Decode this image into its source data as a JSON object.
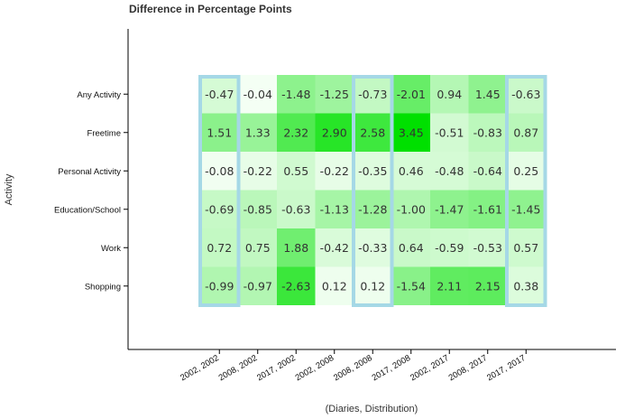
{
  "chart_data": {
    "type": "heatmap",
    "title": "Difference in Percentage Points",
    "xlabel": "(Diaries, Distribution)",
    "ylabel": "Activity",
    "categories_x": [
      "2002, 2002",
      "2008, 2002",
      "2017, 2002",
      "2002, 2008",
      "2008, 2008",
      "2017, 2008",
      "2002, 2017",
      "2008, 2017",
      "2017, 2017"
    ],
    "categories_y": [
      "Any Activity",
      "Freetime",
      "Personal Activity",
      "Education/School",
      "Work",
      "Shopping"
    ],
    "values": [
      [
        -0.47,
        -0.04,
        -1.48,
        -1.25,
        -0.73,
        -2.01,
        0.94,
        1.45,
        -0.63
      ],
      [
        1.51,
        1.33,
        2.32,
        2.9,
        2.58,
        3.45,
        -0.51,
        -0.83,
        0.87
      ],
      [
        -0.08,
        -0.22,
        0.55,
        -0.22,
        -0.35,
        0.46,
        -0.48,
        -0.64,
        0.25
      ],
      [
        -0.69,
        -0.85,
        -0.63,
        -1.13,
        -1.28,
        -1.0,
        -1.47,
        -1.61,
        -1.45
      ],
      [
        0.72,
        0.75,
        1.88,
        -0.42,
        -0.33,
        0.64,
        -0.59,
        -0.53,
        0.57
      ],
      [
        -0.99,
        -0.97,
        -2.63,
        0.12,
        0.12,
        -1.54,
        2.11,
        2.15,
        0.38
      ]
    ],
    "value_labels": [
      [
        "-0.47",
        "-0.04",
        "-1.48",
        "-1.25",
        "-0.73",
        "-2.01",
        "0.94",
        "1.45",
        "-0.63"
      ],
      [
        "1.51",
        "1.33",
        "2.32",
        "2.90",
        "2.58",
        "3.45",
        "-0.51",
        "-0.83",
        "0.87"
      ],
      [
        "-0.08",
        "-0.22",
        "0.55",
        "-0.22",
        "-0.35",
        "0.46",
        "-0.48",
        "-0.64",
        "0.25"
      ],
      [
        "-0.69",
        "-0.85",
        "-0.63",
        "-1.13",
        "-1.28",
        "-1.00",
        "-1.47",
        "-1.61",
        "-1.45"
      ],
      [
        "0.72",
        "0.75",
        "1.88",
        "-0.42",
        "-0.33",
        "0.64",
        "-0.59",
        "-0.53",
        "0.57"
      ],
      [
        "-0.99",
        "-0.97",
        "-2.63",
        "0.12",
        "0.12",
        "-1.54",
        "2.11",
        "2.15",
        "0.38"
      ]
    ],
    "highlighted_columns": [
      "2002, 2002",
      "2008, 2008",
      "2017, 2017"
    ],
    "colors": {
      "scale_low": "#f7fff7",
      "scale_high": "#00e000",
      "highlight_border": "#a5d8e6",
      "axis": "#000000"
    }
  }
}
